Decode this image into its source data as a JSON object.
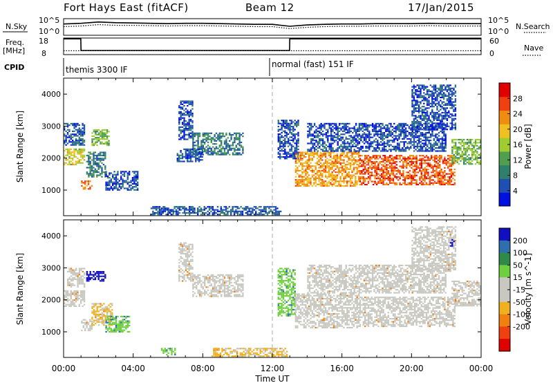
{
  "header": {
    "station": "Fort Hays East (fitACF)",
    "beam": "Beam 12",
    "date": "17/Jan/2015"
  },
  "noise_panel": {
    "left_label": "N.Sky",
    "right_label": "N.Search",
    "tick_top": "10^5",
    "tick_bottom": "10^0"
  },
  "freq_panel": {
    "left_label_line1": "Freq.",
    "left_label_line2": "[MHz]",
    "right_label": "Nave",
    "left_ticks": [
      "18",
      "8"
    ],
    "right_ticks": [
      "60",
      "0"
    ]
  },
  "cpid_panel": {
    "label": "CPID",
    "segments": [
      {
        "start_hour": 0,
        "label": "themis 3300 IF"
      },
      {
        "start_hour": 12,
        "label": "normal (fast) 151 IF"
      }
    ]
  },
  "colors": {
    "power_scale": [
      "#0010e0",
      "#1f4fb0",
      "#2f7f6a",
      "#4f9f4f",
      "#9fcc2f",
      "#f0c020",
      "#f08c10",
      "#f04010",
      "#e00000"
    ],
    "velocity_scale": [
      "#1010c0",
      "#2f6fb0",
      "#2f8a4a",
      "#6fcf3f",
      "#c8c8c0",
      "#c8c8c0",
      "#f0b020",
      "#f08010",
      "#f04010",
      "#e00000"
    ]
  },
  "chart_data": [
    {
      "type": "line",
      "name": "noise",
      "x": [
        0,
        1,
        2,
        3,
        4,
        5,
        6,
        7,
        8,
        9,
        10,
        11,
        12,
        13,
        14,
        15,
        16,
        17,
        18,
        19,
        20,
        21,
        22,
        23,
        24
      ],
      "series": [
        {
          "values": [
            3.4,
            3.6,
            4.0,
            3.8,
            3.7,
            3.6,
            3.5,
            3.6,
            3.6,
            3.5,
            3.4,
            3.3,
            3.3,
            2.7,
            3.1,
            3.3,
            3.4,
            3.4,
            3.5,
            3.5,
            3.5,
            3.6,
            3.5,
            3.5,
            3.5
          ]
        },
        {
          "values": [
            2.6,
            2.8,
            3.2,
            3.0,
            3.0,
            2.9,
            2.8,
            2.9,
            2.9,
            2.8,
            2.7,
            2.6,
            2.6,
            2.0,
            2.4,
            2.6,
            2.7,
            2.7,
            2.8,
            2.8,
            2.8,
            2.9,
            2.8,
            2.8,
            2.8
          ]
        }
      ],
      "ylim": [
        0,
        5
      ],
      "xlim": [
        0,
        24
      ]
    },
    {
      "type": "line",
      "name": "frequency",
      "x": [
        0,
        0.99,
        1.0,
        12.99,
        13.0,
        24
      ],
      "series": [
        {
          "values": [
            17.5,
            17.5,
            10.5,
            10.5,
            17.5,
            17.5
          ]
        }
      ],
      "nave_level": 14,
      "ylim": [
        8,
        18
      ],
      "nave_lim": [
        0,
        60
      ],
      "xlim": [
        0,
        24
      ]
    },
    {
      "type": "heatmap",
      "name": "power",
      "xlim": [
        0,
        24
      ],
      "ylim": [
        200,
        4500
      ],
      "ylabel": "Slant Range [km]",
      "yticks": [
        1000,
        2000,
        3000,
        4000
      ],
      "colorbar_label": "Power [dB]",
      "colorbar_ticks": [
        4,
        8,
        12,
        16,
        20,
        24,
        28
      ],
      "colorbar_range": [
        0,
        32
      ],
      "regions": [
        {
          "hours": [
            0.0,
            1.2
          ],
          "range_km": [
            1800,
            2300
          ],
          "value": 18
        },
        {
          "hours": [
            0.0,
            1.2
          ],
          "range_km": [
            2400,
            3100
          ],
          "value": 6
        },
        {
          "hours": [
            1.0,
            1.6
          ],
          "range_km": [
            1050,
            1300
          ],
          "value": 24
        },
        {
          "hours": [
            1.3,
            2.4
          ],
          "range_km": [
            1400,
            2200
          ],
          "value": 9
        },
        {
          "hours": [
            1.6,
            2.6
          ],
          "range_km": [
            2400,
            2900
          ],
          "value": 14
        },
        {
          "hours": [
            2.4,
            4.3
          ],
          "range_km": [
            1000,
            1600
          ],
          "value": 5
        },
        {
          "hours": [
            5.6,
            6.3
          ],
          "range_km": [
            300,
            500
          ],
          "value": 5
        },
        {
          "hours": [
            6.6,
            7.4
          ],
          "range_km": [
            2600,
            3800
          ],
          "value": 5
        },
        {
          "hours": [
            7.4,
            10.3
          ],
          "range_km": [
            2100,
            2800
          ],
          "value": 8
        },
        {
          "hours": [
            6.5,
            8.0
          ],
          "range_km": [
            1900,
            2300
          ],
          "value": 5
        },
        {
          "hours": [
            12.3,
            13.5
          ],
          "range_km": [
            2000,
            3200
          ],
          "value": 5
        },
        {
          "hours": [
            13.3,
            17.0
          ],
          "range_km": [
            1150,
            2200
          ],
          "value": 22
        },
        {
          "hours": [
            17.0,
            22.5
          ],
          "range_km": [
            1150,
            2100
          ],
          "value": 26
        },
        {
          "hours": [
            22.3,
            24.0
          ],
          "range_km": [
            1800,
            2600
          ],
          "value": 14
        },
        {
          "hours": [
            14.0,
            22.0
          ],
          "range_km": [
            2200,
            3100
          ],
          "value": 5
        },
        {
          "hours": [
            20.0,
            22.5
          ],
          "range_km": [
            2900,
            4300
          ],
          "value": 5
        },
        {
          "hours": [
            5.0,
            12.5
          ],
          "range_km": [
            220,
            500
          ],
          "value": 6
        }
      ],
      "beam_mark_hour": 12
    },
    {
      "type": "heatmap",
      "name": "velocity",
      "xlim": [
        0,
        24
      ],
      "ylim": [
        200,
        4500
      ],
      "ylabel": "Slant Range [km]",
      "yticks": [
        1000,
        2000,
        3000,
        4000
      ],
      "xlabel": "Time UT",
      "xticks": [
        "00:00",
        "04:00",
        "08:00",
        "12:00",
        "16:00",
        "20:00",
        "00:00"
      ],
      "colorbar_label": "Velocity [m s^-1]",
      "colorbar_ticks": [
        "200",
        "100",
        "50",
        "15",
        "-15",
        "-50",
        "-100",
        "-200"
      ],
      "regions": [
        {
          "hours": [
            0.0,
            1.2
          ],
          "range_km": [
            1800,
            2300
          ],
          "value": 0
        },
        {
          "hours": [
            0.2,
            1.2
          ],
          "range_km": [
            2400,
            3000
          ],
          "value": 0
        },
        {
          "hours": [
            1.0,
            1.6
          ],
          "range_km": [
            1050,
            1400
          ],
          "value": 0
        },
        {
          "hours": [
            1.3,
            2.4
          ],
          "range_km": [
            2600,
            2900
          ],
          "value": 220
        },
        {
          "hours": [
            1.6,
            2.8
          ],
          "range_km": [
            1200,
            1900
          ],
          "value": -40
        },
        {
          "hours": [
            2.4,
            3.8
          ],
          "range_km": [
            1000,
            1500
          ],
          "value": 60
        },
        {
          "hours": [
            5.6,
            6.4
          ],
          "range_km": [
            300,
            500
          ],
          "value": 60
        },
        {
          "hours": [
            6.6,
            7.4
          ],
          "range_km": [
            2600,
            3800
          ],
          "value": 0
        },
        {
          "hours": [
            7.4,
            10.3
          ],
          "range_km": [
            2100,
            2800
          ],
          "value": 0
        },
        {
          "hours": [
            12.3,
            13.3
          ],
          "range_km": [
            1500,
            3000
          ],
          "value": 60
        },
        {
          "hours": [
            13.3,
            17.0
          ],
          "range_km": [
            1150,
            2200
          ],
          "value": 0
        },
        {
          "hours": [
            17.0,
            22.5
          ],
          "range_km": [
            1150,
            2100
          ],
          "value": 0
        },
        {
          "hours": [
            22.3,
            24.0
          ],
          "range_km": [
            1800,
            2600
          ],
          "value": 0
        },
        {
          "hours": [
            14.0,
            22.0
          ],
          "range_km": [
            2200,
            3100
          ],
          "value": 0
        },
        {
          "hours": [
            20.0,
            22.5
          ],
          "range_km": [
            2900,
            4300
          ],
          "value": 0
        },
        {
          "hours": [
            22.2,
            22.4
          ],
          "range_km": [
            3700,
            3900
          ],
          "value": 220
        },
        {
          "hours": [
            8.5,
            12.8
          ],
          "range_km": [
            220,
            500
          ],
          "value": -40
        }
      ],
      "beam_mark_hour": 12
    }
  ]
}
